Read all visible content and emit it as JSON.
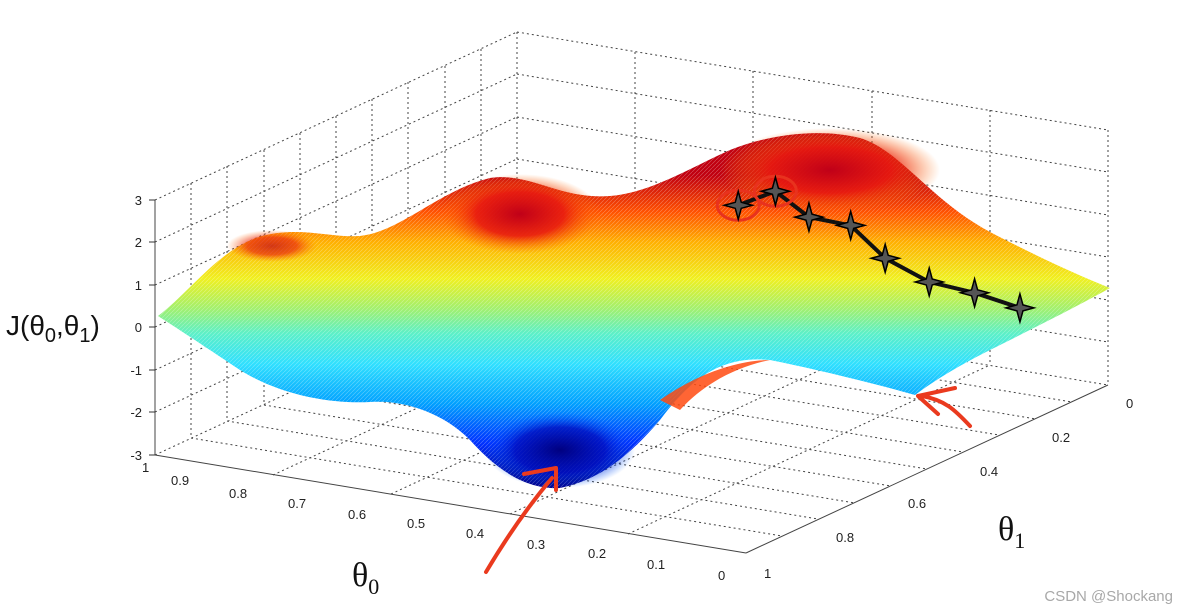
{
  "chart_data": {
    "type": "surface",
    "title": "",
    "zlabel": {
      "base": "J(θ",
      "sub1": "0",
      "mid": ",θ",
      "sub2": "1",
      "end": ")"
    },
    "xlabel": {
      "base": "θ",
      "sub": "0"
    },
    "ylabel": {
      "base": "θ",
      "sub": "1"
    },
    "zlim": [
      -3,
      3
    ],
    "xlim": [
      0,
      1
    ],
    "ylim": [
      0,
      1
    ],
    "z_ticks": [
      "3",
      "2",
      "1",
      "0",
      "-1",
      "-2",
      "-3"
    ],
    "x_ticks": [
      "1",
      "0.9",
      "0.8",
      "0.7",
      "0.6",
      "0.5",
      "0.4",
      "0.3",
      "0.2",
      "0.1",
      "0"
    ],
    "y_ticks": [
      "0",
      "0.2",
      "0.4",
      "0.6",
      "0.8",
      "1"
    ],
    "grid": true,
    "colormap": "jet",
    "descent_path": {
      "marker": "star",
      "color": "#111111",
      "start_highlight_color": "#e8321e",
      "points": [
        {
          "theta0": 0.35,
          "theta1": 0.45,
          "J": 2.2
        },
        {
          "theta0": 0.33,
          "theta1": 0.38,
          "J": 2.3
        },
        {
          "theta0": 0.31,
          "theta1": 0.32,
          "J": 1.5
        },
        {
          "theta0": 0.27,
          "theta1": 0.27,
          "J": 1.2
        },
        {
          "theta0": 0.23,
          "theta1": 0.24,
          "J": 0.4
        },
        {
          "theta0": 0.18,
          "theta1": 0.2,
          "J": -0.2
        },
        {
          "theta0": 0.14,
          "theta1": 0.14,
          "J": -0.6
        },
        {
          "theta0": 0.1,
          "theta1": 0.08,
          "J": -1.1
        }
      ]
    },
    "annotations": [
      {
        "kind": "arrow",
        "color": "#ea3a1e",
        "points_to": "global minimum near theta0 0.25, theta1 0.55"
      },
      {
        "kind": "arrow",
        "color": "#ea3a1e",
        "points_to": "local minimum near theta0 0.05, theta1 0.0"
      }
    ]
  },
  "watermark": "CSDN @Shockang"
}
